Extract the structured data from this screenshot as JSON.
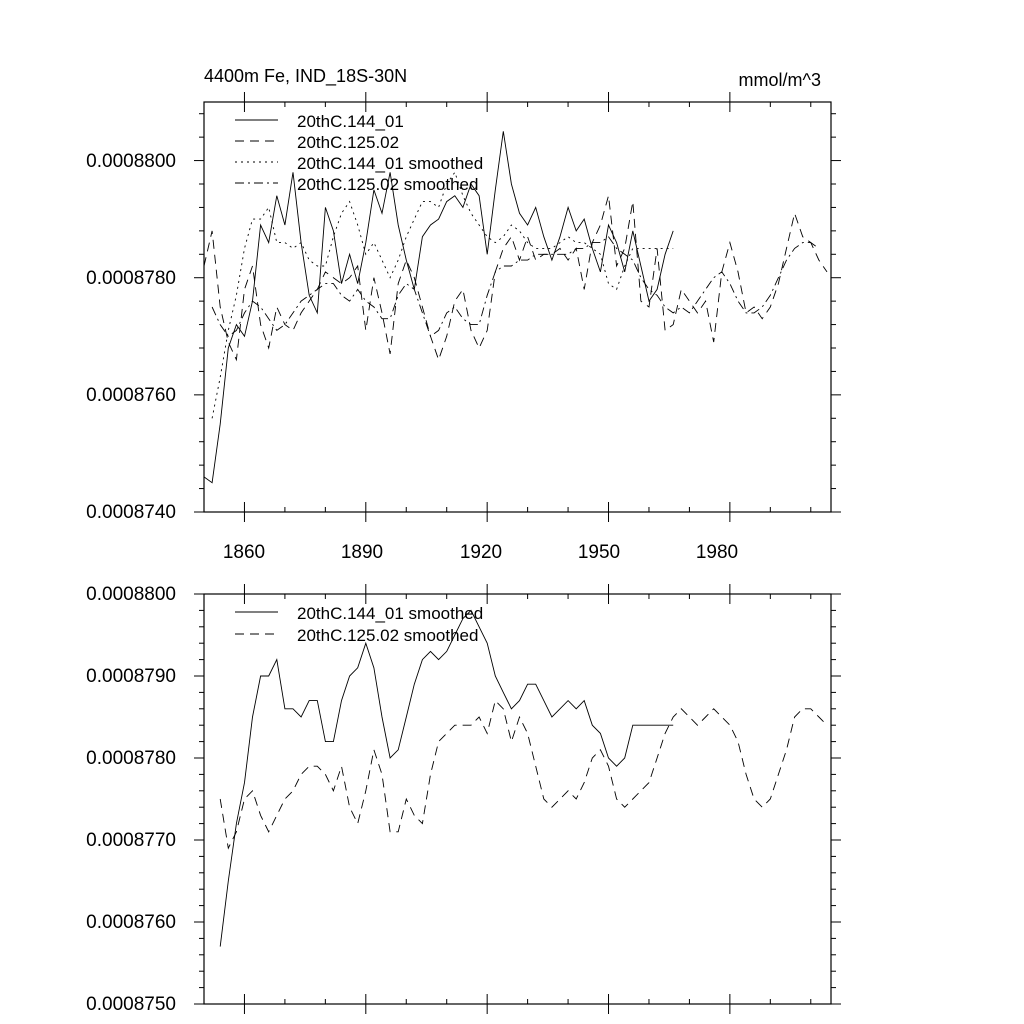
{
  "chart_data": [
    {
      "type": "line",
      "title": "4400m Fe, IND_18S-30N",
      "units": "mmol/m^3",
      "xlim": [
        1850,
        2005
      ],
      "ylim": [
        0.000874,
        0.000881
      ],
      "x_ticks": [
        1860,
        1890,
        1920,
        1950,
        1980
      ],
      "y_ticks": [
        "0.0008740",
        "0.0008760",
        "0.0008780",
        "0.0008800"
      ],
      "y_tick_values": [
        0.000874,
        0.000876,
        0.000878,
        0.00088
      ],
      "series": [
        {
          "name": "20thC.144_01",
          "dash": "solid",
          "x": [
            1850,
            1852,
            1854,
            1856,
            1858,
            1860,
            1862,
            1864,
            1866,
            1868,
            1870,
            1872,
            1874,
            1876,
            1878,
            1880,
            1882,
            1884,
            1886,
            1888,
            1890,
            1892,
            1894,
            1896,
            1898,
            1900,
            1902,
            1904,
            1906,
            1908,
            1910,
            1912,
            1914,
            1916,
            1918,
            1920,
            1922,
            1924,
            1926,
            1928,
            1930,
            1932,
            1934,
            1936,
            1938,
            1940,
            1942,
            1944,
            1946,
            1948,
            1950,
            1952,
            1954,
            1956,
            1958,
            1960,
            1962,
            1964,
            1966
          ],
          "values": [
            0.0008746,
            0.0008745,
            0.0008755,
            0.0008768,
            0.0008772,
            0.000877,
            0.0008776,
            0.0008789,
            0.0008786,
            0.0008794,
            0.0008789,
            0.0008798,
            0.0008786,
            0.0008777,
            0.0008774,
            0.0008792,
            0.0008788,
            0.0008779,
            0.0008784,
            0.0008779,
            0.0008786,
            0.0008795,
            0.0008791,
            0.0008798,
            0.0008789,
            0.0008783,
            0.0008778,
            0.0008787,
            0.0008789,
            0.000879,
            0.0008793,
            0.0008794,
            0.0008792,
            0.0008796,
            0.0008794,
            0.0008784,
            0.0008795,
            0.0008805,
            0.0008796,
            0.0008791,
            0.0008789,
            0.0008792,
            0.0008787,
            0.0008783,
            0.0008787,
            0.0008792,
            0.0008788,
            0.000879,
            0.0008785,
            0.0008781,
            0.0008789,
            0.0008786,
            0.0008781,
            0.0008788,
            0.0008782,
            0.0008776,
            0.0008778,
            0.0008784,
            0.0008788
          ]
        },
        {
          "name": "20thC.125.02",
          "dash": "dashed",
          "x": [
            1850,
            1852,
            1854,
            1856,
            1858,
            1860,
            1862,
            1864,
            1866,
            1868,
            1870,
            1872,
            1874,
            1876,
            1878,
            1880,
            1882,
            1884,
            1886,
            1888,
            1890,
            1892,
            1894,
            1896,
            1898,
            1900,
            1902,
            1904,
            1906,
            1908,
            1910,
            1912,
            1914,
            1916,
            1918,
            1920,
            1922,
            1924,
            1926,
            1928,
            1930,
            1932,
            1934,
            1936,
            1938,
            1940,
            1942,
            1944,
            1946,
            1948,
            1950,
            1952,
            1954,
            1956,
            1958,
            1960,
            1962,
            1964,
            1966,
            1968,
            1970,
            1972,
            1974,
            1976,
            1978,
            1980,
            1982,
            1984,
            1986,
            1988,
            1990,
            1992,
            1994,
            1996,
            1998,
            2000,
            2002,
            2004
          ],
          "values": [
            0.0008782,
            0.0008788,
            0.0008775,
            0.0008769,
            0.0008766,
            0.0008778,
            0.0008782,
            0.0008772,
            0.0008768,
            0.0008775,
            0.0008772,
            0.0008771,
            0.0008774,
            0.0008776,
            0.0008778,
            0.0008781,
            0.000878,
            0.0008779,
            0.000878,
            0.0008782,
            0.0008771,
            0.000878,
            0.0008774,
            0.0008767,
            0.0008779,
            0.0008783,
            0.000878,
            0.0008775,
            0.000877,
            0.0008766,
            0.000877,
            0.0008776,
            0.0008778,
            0.0008771,
            0.0008768,
            0.0008771,
            0.0008781,
            0.0008785,
            0.0008787,
            0.0008783,
            0.0008787,
            0.0008783,
            0.0008784,
            0.0008784,
            0.0008785,
            0.0008783,
            0.0008785,
            0.0008778,
            0.0008786,
            0.0008789,
            0.0008794,
            0.0008782,
            0.0008785,
            0.0008793,
            0.0008776,
            0.0008775,
            0.0008785,
            0.0008771,
            0.0008772,
            0.0008778,
            0.0008776,
            0.0008774,
            0.0008776,
            0.0008769,
            0.0008781,
            0.0008786,
            0.0008781,
            0.0008774,
            0.0008775,
            0.0008773,
            0.0008775,
            0.0008779,
            0.0008785,
            0.0008791,
            0.0008787,
            0.0008786,
            0.0008783,
            0.0008781
          ]
        },
        {
          "name": "20thC.144_01 smoothed",
          "dash": "dotted",
          "x": [
            1852,
            1854,
            1856,
            1858,
            1860,
            1862,
            1864,
            1866,
            1868,
            1870,
            1872,
            1874,
            1876,
            1878,
            1880,
            1882,
            1884,
            1886,
            1888,
            1890,
            1892,
            1894,
            1896,
            1898,
            1900,
            1902,
            1904,
            1906,
            1908,
            1910,
            1912,
            1914,
            1916,
            1918,
            1920,
            1922,
            1924,
            1926,
            1928,
            1930,
            1932,
            1934,
            1936,
            1938,
            1940,
            1942,
            1944,
            1946,
            1948,
            1950,
            1952,
            1954,
            1956,
            1958,
            1960,
            1962,
            1964,
            1966
          ],
          "values": [
            0.0008756,
            0.0008763,
            0.0008771,
            0.0008777,
            0.0008785,
            0.000879,
            0.000879,
            0.0008792,
            0.0008786,
            0.0008786,
            0.0008785,
            0.0008786,
            0.0008783,
            0.0008782,
            0.0008782,
            0.0008787,
            0.0008791,
            0.0008793,
            0.0008789,
            0.0008784,
            0.0008786,
            0.0008783,
            0.000878,
            0.0008783,
            0.0008787,
            0.000879,
            0.0008793,
            0.0008793,
            0.0008792,
            0.0008796,
            0.0008798,
            0.0008794,
            0.0008791,
            0.0008789,
            0.0008787,
            0.0008786,
            0.0008787,
            0.0008789,
            0.0008788,
            0.0008786,
            0.0008785,
            0.0008785,
            0.0008785,
            0.0008786,
            0.0008787,
            0.0008786,
            0.0008786,
            0.0008785,
            0.0008784,
            0.0008779,
            0.0008778,
            0.0008782,
            0.0008785,
            0.0008785,
            0.0008785,
            0.0008785,
            0.0008785,
            0.0008785
          ]
        },
        {
          "name": "20thC.125.02 smoothed",
          "dash": "dashdot",
          "x": [
            1852,
            1854,
            1856,
            1858,
            1860,
            1862,
            1864,
            1866,
            1868,
            1870,
            1872,
            1874,
            1876,
            1878,
            1880,
            1882,
            1884,
            1886,
            1888,
            1890,
            1892,
            1894,
            1896,
            1898,
            1900,
            1902,
            1904,
            1906,
            1908,
            1910,
            1912,
            1914,
            1916,
            1918,
            1920,
            1922,
            1924,
            1926,
            1928,
            1930,
            1932,
            1934,
            1936,
            1938,
            1940,
            1942,
            1944,
            1946,
            1948,
            1950,
            1952,
            1954,
            1956,
            1958,
            1960,
            1962,
            1964,
            1966,
            1968,
            1970,
            1972,
            1974,
            1976,
            1978,
            1980,
            1982,
            1984,
            1986,
            1988,
            1990,
            1992,
            1994,
            1996,
            1998,
            2000,
            2002
          ],
          "values": [
            0.0008775,
            0.0008772,
            0.000877,
            0.0008771,
            0.0008774,
            0.0008776,
            0.0008775,
            0.0008773,
            0.0008771,
            0.0008772,
            0.0008774,
            0.0008776,
            0.0008777,
            0.0008778,
            0.0008779,
            0.0008779,
            0.0008777,
            0.0008776,
            0.0008778,
            0.0008776,
            0.0008775,
            0.0008773,
            0.0008773,
            0.0008777,
            0.0008779,
            0.0008778,
            0.0008774,
            0.000877,
            0.0008771,
            0.0008774,
            0.0008775,
            0.0008773,
            0.0008772,
            0.0008772,
            0.0008777,
            0.0008781,
            0.0008782,
            0.0008782,
            0.0008783,
            0.0008783,
            0.0008784,
            0.0008784,
            0.0008784,
            0.0008784,
            0.0008784,
            0.0008785,
            0.0008785,
            0.0008786,
            0.0008786,
            0.0008787,
            0.0008785,
            0.0008784,
            0.0008783,
            0.000878,
            0.0008778,
            0.0008777,
            0.0008775,
            0.0008774,
            0.0008775,
            0.0008774,
            0.0008776,
            0.0008778,
            0.000878,
            0.0008781,
            0.0008779,
            0.0008776,
            0.0008774,
            0.0008774,
            0.0008775,
            0.0008777,
            0.000878,
            0.0008783,
            0.0008785,
            0.0008786,
            0.0008786,
            0.0008785
          ]
        }
      ]
    },
    {
      "type": "line",
      "xlim": [
        1850,
        2005
      ],
      "ylim": [
        0.000875,
        0.00088
      ],
      "y_ticks": [
        "0.0008750",
        "0.0008760",
        "0.0008770",
        "0.0008780",
        "0.0008790",
        "0.0008800"
      ],
      "y_tick_values": [
        0.000875,
        0.000876,
        0.000877,
        0.000878,
        0.000879,
        0.00088
      ],
      "series": [
        {
          "name": "20thC.144_01 smoothed",
          "dash": "solid",
          "x": [
            1854,
            1856,
            1858,
            1860,
            1862,
            1864,
            1866,
            1868,
            1870,
            1872,
            1874,
            1876,
            1878,
            1880,
            1882,
            1884,
            1886,
            1888,
            1890,
            1892,
            1894,
            1896,
            1898,
            1900,
            1902,
            1904,
            1906,
            1908,
            1910,
            1912,
            1914,
            1916,
            1918,
            1920,
            1922,
            1924,
            1926,
            1928,
            1930,
            1932,
            1934,
            1936,
            1938,
            1940,
            1942,
            1944,
            1946,
            1948,
            1950,
            1952,
            1954,
            1956,
            1958,
            1960,
            1962,
            1964,
            1966
          ],
          "values": [
            0.0008757,
            0.0008765,
            0.0008772,
            0.0008777,
            0.0008785,
            0.000879,
            0.000879,
            0.0008792,
            0.0008786,
            0.0008786,
            0.0008785,
            0.0008787,
            0.0008787,
            0.0008782,
            0.0008782,
            0.0008787,
            0.000879,
            0.0008791,
            0.0008794,
            0.0008791,
            0.0008785,
            0.000878,
            0.0008781,
            0.0008785,
            0.0008789,
            0.0008792,
            0.0008793,
            0.0008792,
            0.0008793,
            0.0008795,
            0.0008797,
            0.0008798,
            0.0008796,
            0.0008794,
            0.000879,
            0.0008788,
            0.0008786,
            0.0008787,
            0.0008789,
            0.0008789,
            0.0008787,
            0.0008785,
            0.0008786,
            0.0008787,
            0.0008786,
            0.0008787,
            0.0008784,
            0.0008783,
            0.000878,
            0.0008779,
            0.000878,
            0.0008784,
            0.0008784,
            0.0008784,
            0.0008784,
            0.0008784,
            0.0008784
          ]
        },
        {
          "name": "20thC.125.02 smoothed",
          "dash": "dashed",
          "x": [
            1854,
            1856,
            1858,
            1860,
            1862,
            1864,
            1866,
            1868,
            1870,
            1872,
            1874,
            1876,
            1878,
            1880,
            1882,
            1884,
            1886,
            1888,
            1890,
            1892,
            1894,
            1896,
            1898,
            1900,
            1902,
            1904,
            1906,
            1908,
            1910,
            1912,
            1914,
            1916,
            1918,
            1920,
            1922,
            1924,
            1926,
            1928,
            1930,
            1932,
            1934,
            1936,
            1938,
            1940,
            1942,
            1944,
            1946,
            1948,
            1950,
            1952,
            1954,
            1956,
            1958,
            1960,
            1962,
            1964,
            1966,
            1968,
            1970,
            1972,
            1974,
            1976,
            1978,
            1980,
            1982,
            1984,
            1986,
            1988,
            1990,
            1992,
            1994,
            1996,
            1998,
            2000,
            2002,
            2004
          ],
          "values": [
            0.0008775,
            0.0008769,
            0.0008771,
            0.0008775,
            0.0008776,
            0.0008773,
            0.0008771,
            0.0008773,
            0.0008775,
            0.0008776,
            0.0008778,
            0.0008779,
            0.0008779,
            0.0008778,
            0.0008776,
            0.0008779,
            0.0008774,
            0.0008772,
            0.0008776,
            0.0008781,
            0.0008778,
            0.0008771,
            0.0008771,
            0.0008775,
            0.0008773,
            0.0008772,
            0.0008778,
            0.0008782,
            0.0008783,
            0.0008784,
            0.0008784,
            0.0008784,
            0.0008785,
            0.0008783,
            0.0008787,
            0.0008786,
            0.0008782,
            0.0008785,
            0.0008783,
            0.0008779,
            0.0008775,
            0.0008774,
            0.0008775,
            0.0008776,
            0.0008775,
            0.0008777,
            0.000878,
            0.0008781,
            0.0008779,
            0.0008775,
            0.0008774,
            0.0008775,
            0.0008776,
            0.0008777,
            0.000878,
            0.0008783,
            0.0008785,
            0.0008786,
            0.0008785,
            0.0008784,
            0.0008785,
            0.0008786,
            0.0008785,
            0.0008784,
            0.0008782,
            0.0008778,
            0.0008775,
            0.0008774,
            0.0008775,
            0.0008778,
            0.0008781,
            0.0008785,
            0.0008786,
            0.0008786,
            0.0008785,
            0.0008784
          ]
        }
      ]
    }
  ]
}
